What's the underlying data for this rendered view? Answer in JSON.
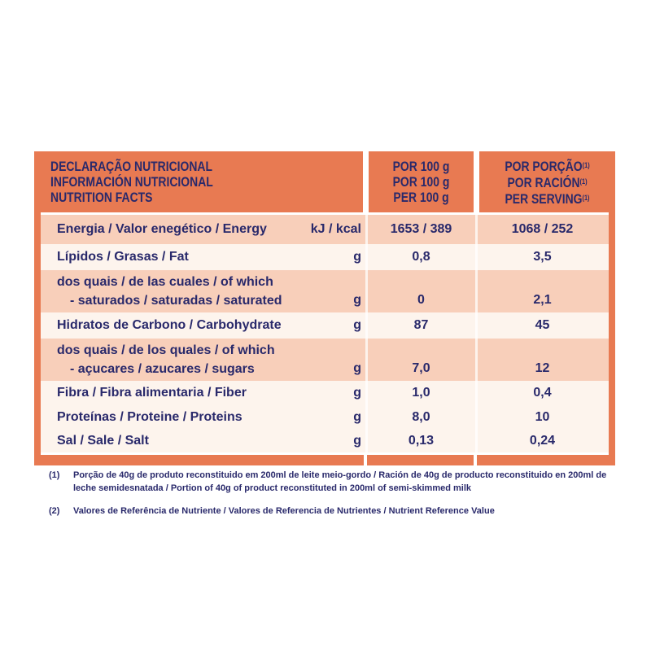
{
  "colors": {
    "orange": "#E87A52",
    "navy": "#29296B",
    "peach": "#F8CFBA",
    "light": "#FDF4ED"
  },
  "table": {
    "header": {
      "titles": [
        "DECLARAÇÃO NUTRICIONAL",
        "INFORMACIÓN NUTRICIONAL",
        "NUTRITION FACTS"
      ],
      "per_100": [
        "POR 100 g",
        "POR 100 g",
        "PER 100 g"
      ],
      "per_serving": [
        "POR PORÇÃO",
        "POR RACIÓN",
        "PER SERVING"
      ],
      "sup": "(1)"
    },
    "rows": [
      {
        "label": "Energia / Valor enegético / Energy",
        "unit": "kJ / kcal",
        "per100": "1653 / 389",
        "serving": "1068 / 252"
      },
      {
        "label": "Lípidos / Grasas / Fat",
        "unit": "g",
        "per100": "0,8",
        "serving": "3,5"
      },
      {
        "label1": "dos quais / de las cuales / of which",
        "label2": "- saturados / saturadas / saturated",
        "unit": "g",
        "per100": "0",
        "serving": "2,1"
      },
      {
        "label": "Hidratos de Carbono / Carbohydrate",
        "unit": "g",
        "per100": "87",
        "serving": "45"
      },
      {
        "label1": "dos quais / de los quales / of which",
        "label2": "- açucares / azucares / sugars",
        "unit": "g",
        "per100": "7,0",
        "serving": "12"
      },
      {
        "label": "Fibra / Fibra alimentaria / Fiber",
        "unit": "g",
        "per100": "1,0",
        "serving": "0,4"
      },
      {
        "label": "Proteínas / Proteine / Proteins",
        "unit": "g",
        "per100": "8,0",
        "serving": "10"
      },
      {
        "label": "Sal / Sale / Salt",
        "unit": "g",
        "per100": "0,13",
        "serving": "0,24"
      }
    ]
  },
  "footnotes": [
    {
      "marker": "(1)",
      "text": "Porção de 40g de produto reconstituido em 200ml de leite meio-gordo / Ración de 40g de producto reconstituido en 200ml de leche semidesnatada / Portion of 40g of product reconstituted in 200ml of semi-skimmed milk"
    },
    {
      "marker": "(2)",
      "text": "Valores de Referência de Nutriente / Valores de Referencia de Nutrientes / Nutrient Reference Value"
    }
  ]
}
